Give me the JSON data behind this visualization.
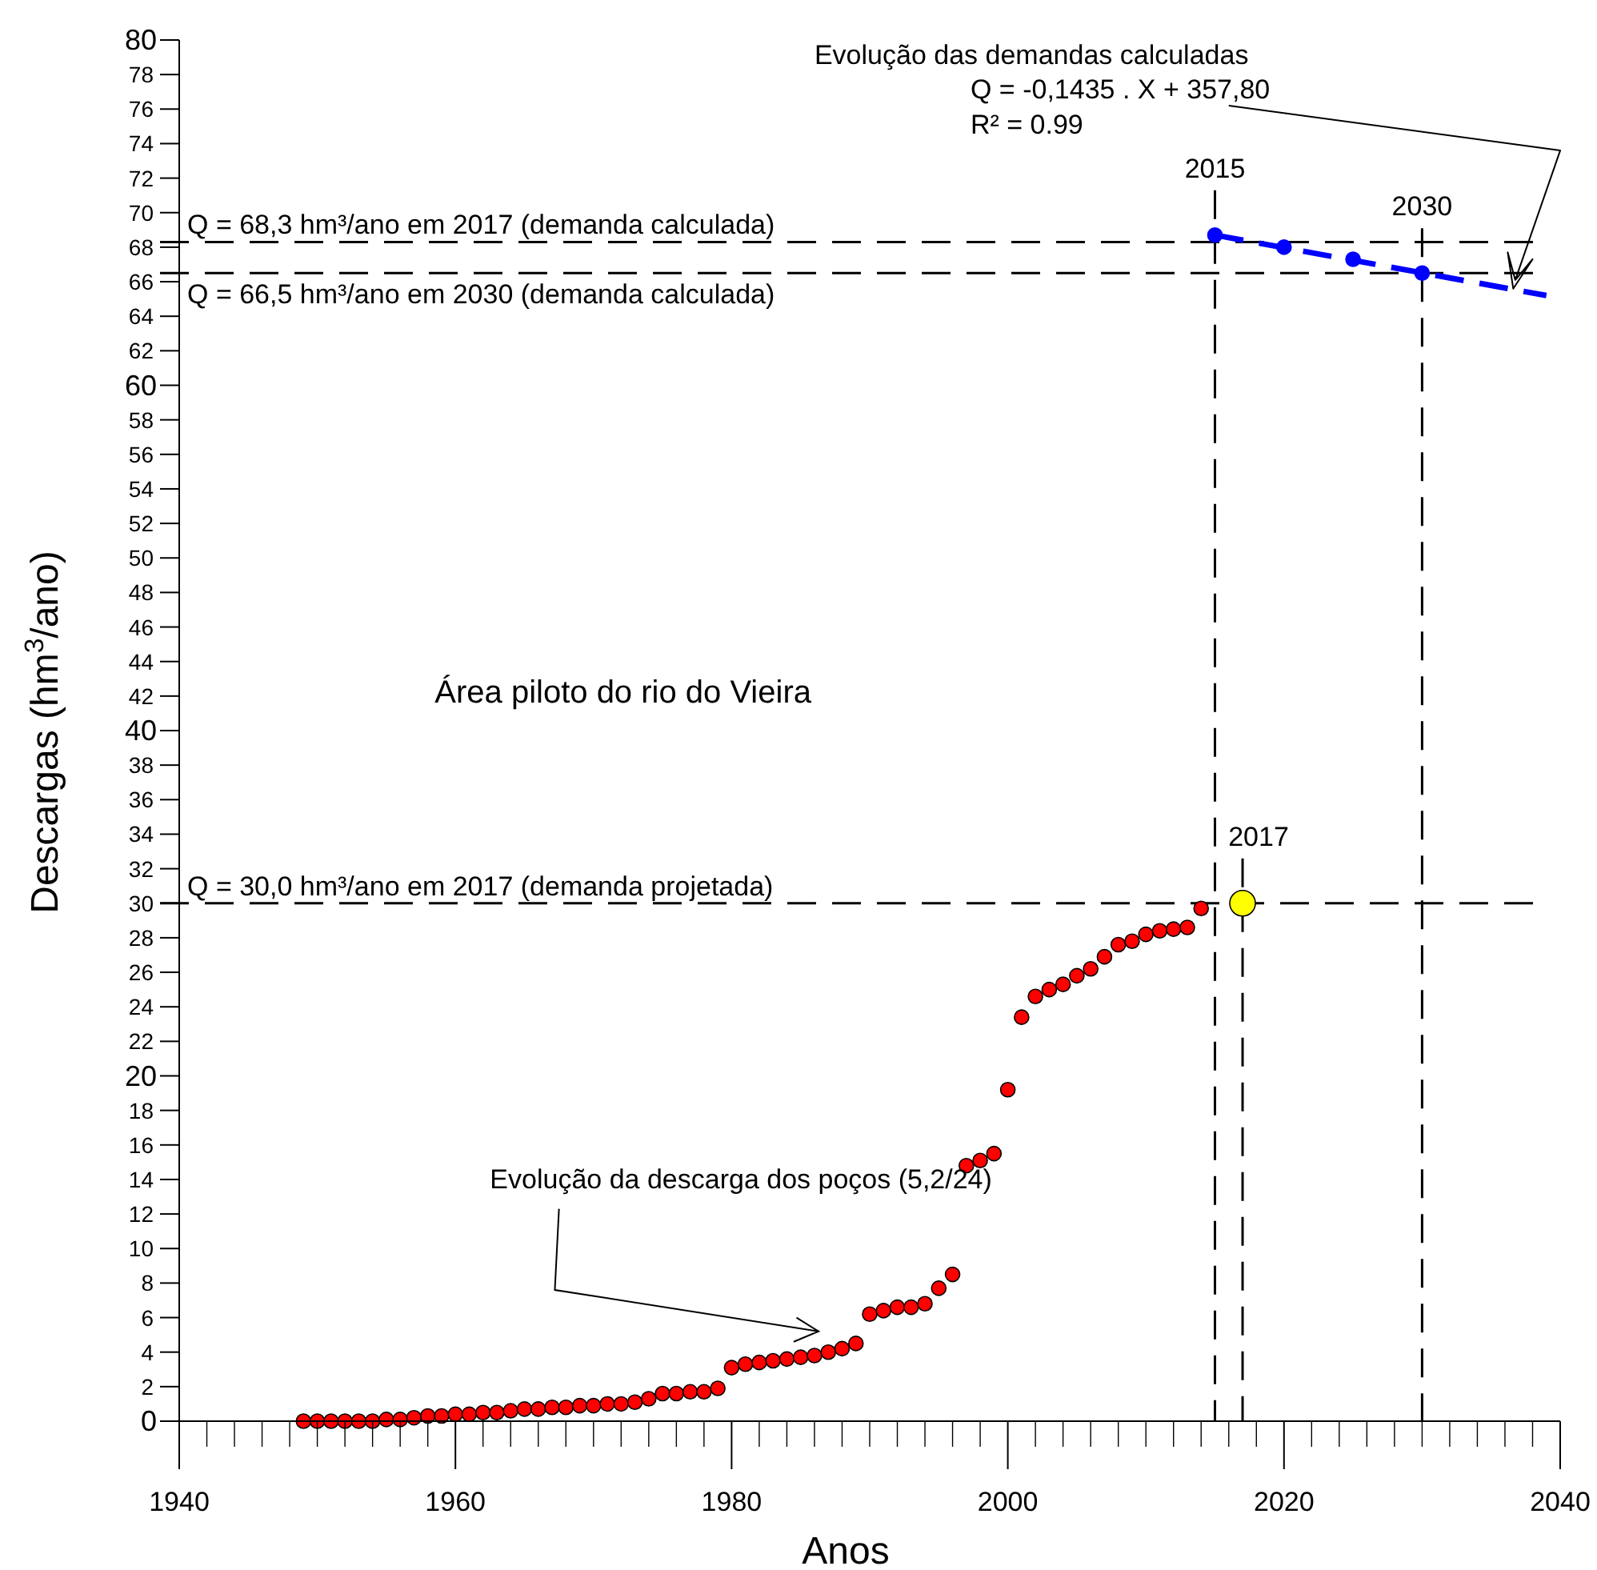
{
  "chart_data": {
    "type": "scatter",
    "xlabel": "Anos",
    "ylabel": "Descargas (hm$^{3}$/ano)",
    "xlim": [
      1940,
      2040
    ],
    "ylim": [
      0,
      80
    ],
    "xticks": [
      1940,
      {
        "value": 1942,
        "label": null
      },
      {
        "value": 1944,
        "label": null
      },
      {
        "value": 1946,
        "label": null
      },
      {
        "value": 1948,
        "label": null
      },
      {
        "value": 1950,
        "label": null
      },
      {
        "value": 1952,
        "label": null
      },
      {
        "value": 1954,
        "label": null
      },
      {
        "value": 1956,
        "label": null
      },
      {
        "value": 1958,
        "label": null
      },
      1960,
      {
        "value": 1962,
        "label": null
      },
      {
        "value": 1964,
        "label": null
      },
      {
        "value": 1966,
        "label": null
      },
      {
        "value": 1968,
        "label": null
      },
      {
        "value": 1970,
        "label": null
      },
      {
        "value": 1972,
        "label": null
      },
      {
        "value": 1974,
        "label": null
      },
      {
        "value": 1976,
        "label": null
      },
      {
        "value": 1978,
        "label": null
      },
      1980,
      {
        "value": 1982,
        "label": null
      },
      {
        "value": 1984,
        "label": null
      },
      {
        "value": 1986,
        "label": null
      },
      {
        "value": 1988,
        "label": null
      },
      {
        "value": 1990,
        "label": null
      },
      {
        "value": 1992,
        "label": null
      },
      {
        "value": 1994,
        "label": null
      },
      {
        "value": 1996,
        "label": null
      },
      {
        "value": 1998,
        "label": null
      },
      2000,
      {
        "value": 2002,
        "label": null
      },
      {
        "value": 2004,
        "label": null
      },
      {
        "value": 2006,
        "label": null
      },
      {
        "value": 2008,
        "label": null
      },
      {
        "value": 2010,
        "label": null
      },
      {
        "value": 2012,
        "label": null
      },
      {
        "value": 2014,
        "label": null
      },
      {
        "value": 2016,
        "label": null
      },
      {
        "value": 2018,
        "label": null
      },
      2020,
      {
        "value": 2022,
        "label": null
      },
      {
        "value": 2024,
        "label": null
      },
      {
        "value": 2026,
        "label": null
      },
      {
        "value": 2028,
        "label": null
      },
      {
        "value": 2030,
        "label": null
      },
      {
        "value": 2032,
        "label": null
      },
      {
        "value": 2034,
        "label": null
      },
      {
        "value": 2036,
        "label": null
      },
      {
        "value": 2038,
        "label": null
      },
      2040
    ],
    "yticks": [
      0,
      2,
      4,
      6,
      8,
      10,
      12,
      14,
      16,
      18,
      20,
      22,
      24,
      26,
      28,
      30,
      32,
      34,
      36,
      38,
      40,
      42,
      44,
      46,
      48,
      50,
      52,
      54,
      56,
      58,
      60,
      62,
      64,
      66,
      68,
      70,
      72,
      74,
      76,
      78,
      80
    ],
    "marker": "circle",
    "series": [
      {
        "color": "#ff0000",
        "x": [
          1949,
          1950,
          1951,
          1952,
          1953,
          1954,
          1955,
          1956,
          1957,
          1958,
          1959,
          1960,
          1961,
          1962,
          1963,
          1964,
          1965,
          1966,
          1967,
          1968,
          1969,
          1970,
          1971,
          1972,
          1973,
          1974,
          1975,
          1976,
          1977,
          1978,
          1979,
          1980,
          1981,
          1982,
          1983,
          1984,
          1985,
          1986,
          1987,
          1988,
          1989,
          1990,
          1991,
          1992,
          1993,
          1994,
          1995,
          1996,
          1997,
          1998,
          1999,
          2000,
          2001,
          2002,
          2003,
          2004,
          2005,
          2006,
          2007,
          2008,
          2009,
          2010,
          2011,
          2012,
          2013,
          2014
        ],
        "values": [
          0.0,
          0.0,
          0.0,
          0.0,
          0.0,
          0.0,
          0.1,
          0.1,
          0.2,
          0.3,
          0.3,
          0.4,
          0.4,
          0.5,
          0.5,
          0.6,
          0.7,
          0.7,
          0.8,
          0.8,
          0.9,
          0.9,
          1.0,
          1.0,
          1.1,
          1.3,
          1.6,
          1.6,
          1.7,
          1.7,
          1.9,
          3.1,
          3.3,
          3.4,
          3.5,
          3.6,
          3.7,
          3.8,
          4.0,
          4.2,
          4.5,
          6.2,
          6.4,
          6.6,
          6.6,
          6.8,
          7.7,
          8.5,
          14.8,
          15.1,
          15.5,
          19.2,
          23.4,
          24.6,
          25.0,
          25.3,
          25.8,
          26.2,
          26.9,
          27.6,
          27.8,
          28.2,
          28.4,
          28.5,
          28.6,
          29.7
        ]
      },
      {
        "color": "#ffff00",
        "x": [
          2017
        ],
        "values": [
          30.0
        ]
      },
      {
        "color": "#0000ff",
        "x": [
          2015,
          2020,
          2025,
          2030
        ],
        "values": [
          68.7,
          68.0,
          67.3,
          66.5
        ]
      },
      {
        "type": "line",
        "color": "#0000ff",
        "line_style": "dashed",
        "marker": "none",
        "x": [
          2015,
          2039
        ],
        "values": [
          68.7,
          65.2
        ]
      }
    ],
    "ref_lines": [
      {
        "axis": "y",
        "value": 68.3,
        "label": "Q = 68,3 hm³/ano em 2017 (demanda calculada)",
        "line_style": "dashed",
        "color": "#000000"
      },
      {
        "axis": "y",
        "value": 66.5,
        "label": "Q = 66,5 hm³/ano em 2030 (demanda calculada)",
        "line_style": "dashed",
        "color": "#000000"
      },
      {
        "axis": "y",
        "value": 30.0,
        "label": "Q = 30,0 hm³/ano em 2017 (demanda projetada)",
        "line_style": "dashed",
        "color": "#000000"
      },
      {
        "axis": "x",
        "value": 2015,
        "label": "2015",
        "line_style": "dashed",
        "color": "#000000"
      },
      {
        "axis": "x",
        "value": 2017,
        "label": "2017",
        "line_style": "dashed",
        "color": "#000000"
      },
      {
        "axis": "x",
        "value": 2030,
        "label": "2030",
        "line_style": "dashed",
        "color": "#000000"
      }
    ],
    "annotations": [
      {
        "text": "Evolução das demandas calculadas",
        "x": 2036.6,
        "y": 65.6
      },
      "Q = -0,1435 . X + 357,80",
      "R² = 0.99",
      "Área piloto do rio do Vieira",
      "Evolução da descarga dos poços (5,2/24)"
    ]
  }
}
